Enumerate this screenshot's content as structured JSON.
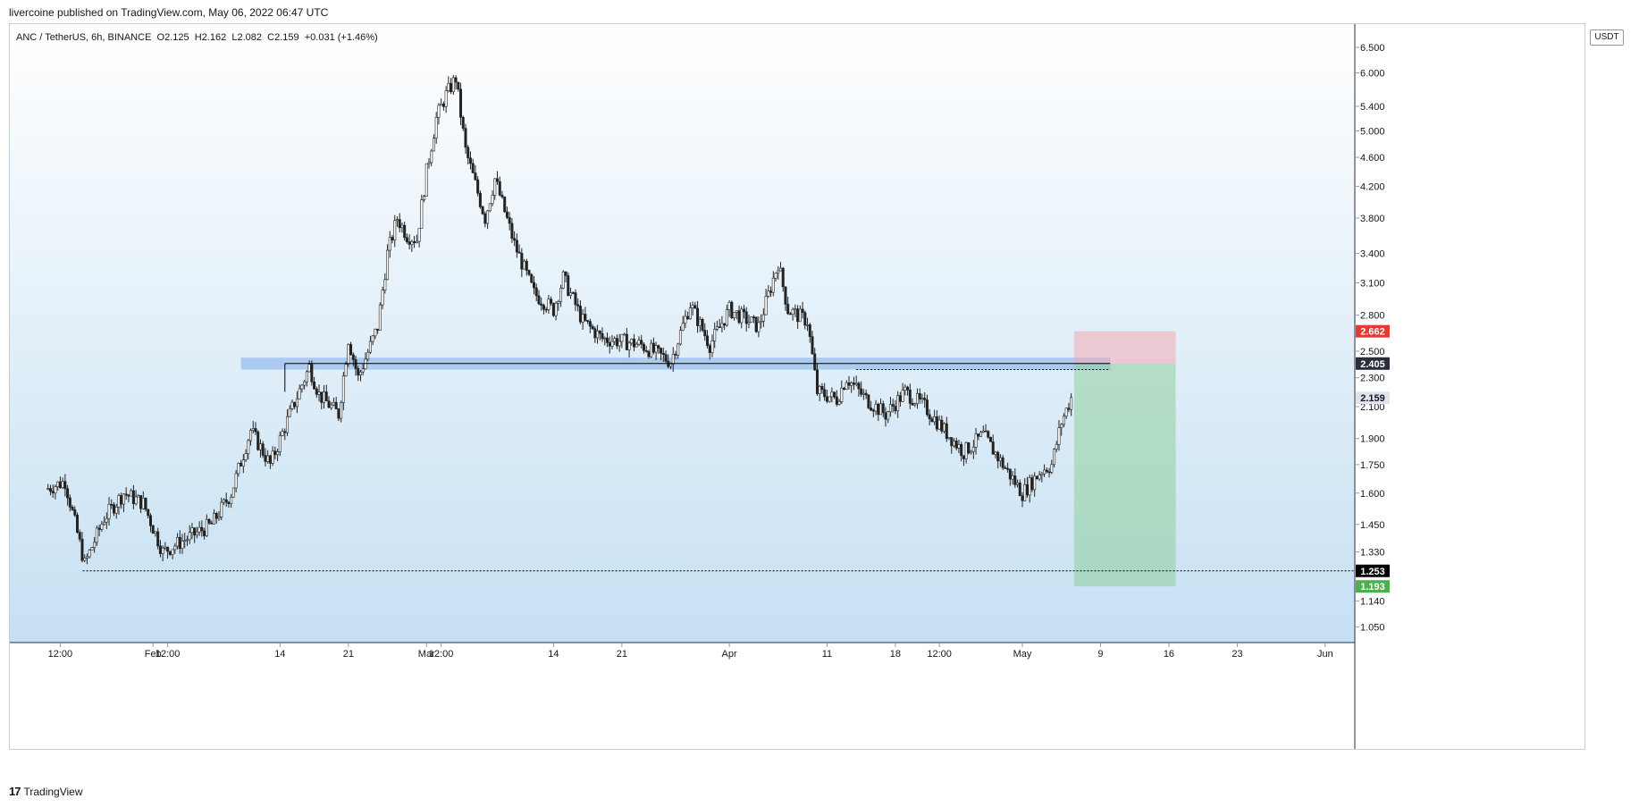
{
  "header": {
    "published_by": "livercoine published on TradingView.com, May 06, 2022 06:47 UTC"
  },
  "legend": {
    "symbol": "ANC / TetherUS, 6h, BINANCE",
    "open": "O2.125",
    "high": "H2.162",
    "low": "L2.082",
    "close": "C2.159",
    "change": "+0.031 (+1.46%)"
  },
  "price_axis": {
    "currency": "USDT",
    "ticks": [
      "6.500",
      "6.000",
      "5.400",
      "5.000",
      "4.600",
      "4.200",
      "3.800",
      "3.400",
      "3.100",
      "2.800",
      "2.500",
      "2.300",
      "2.100",
      "1.900",
      "1.750",
      "1.600",
      "1.450",
      "1.330",
      "1.140",
      "1.050"
    ]
  },
  "time_axis": {
    "labels": [
      "12:00",
      "Feb",
      "12:00",
      "14",
      "21",
      "Mar",
      "12:00",
      "14",
      "21",
      "Apr",
      "11",
      "18",
      "12:00",
      "May",
      "9",
      "16",
      "23",
      "Jun"
    ]
  },
  "price_badges": {
    "stop": "2.662",
    "zone": "2.405",
    "current": "2.159",
    "support": "1.253",
    "target": "1.193"
  },
  "colors": {
    "badge_stop": "#e53935",
    "badge_zone": "#2a2e39",
    "badge_current": "#e0e3eb",
    "badge_support": "#000000",
    "badge_target": "#4caf50",
    "zone_fill": "#6f9fe8",
    "stop_fill": "#f4a9b3",
    "target_fill": "#8fcf9a"
  },
  "footer": {
    "brand": "TradingView"
  },
  "chart_data": {
    "type": "candlestick",
    "title": "ANC / TetherUS, 6h, BINANCE",
    "scale": "log",
    "ylim": [
      1.0,
      7.0
    ],
    "close_series": [
      {
        "x": "Jan 21",
        "y": 1.62
      },
      {
        "x": "Jan 23",
        "y": 1.66
      },
      {
        "x": "Jan 25",
        "y": 1.28
      },
      {
        "x": "Jan 27",
        "y": 1.48
      },
      {
        "x": "Jan 29",
        "y": 1.6
      },
      {
        "x": "Jan 31",
        "y": 1.55
      },
      {
        "x": "Feb 02",
        "y": 1.33
      },
      {
        "x": "Feb 05",
        "y": 1.4
      },
      {
        "x": "Feb 07",
        "y": 1.45
      },
      {
        "x": "Feb 09",
        "y": 1.6
      },
      {
        "x": "Feb 11",
        "y": 1.95
      },
      {
        "x": "Feb 13",
        "y": 1.75
      },
      {
        "x": "Feb 15",
        "y": 2.05
      },
      {
        "x": "Feb 17",
        "y": 2.38
      },
      {
        "x": "Feb 18",
        "y": 2.18
      },
      {
        "x": "Feb 20",
        "y": 2.05
      },
      {
        "x": "Feb 21",
        "y": 2.6
      },
      {
        "x": "Feb 22",
        "y": 2.3
      },
      {
        "x": "Feb 24",
        "y": 2.7
      },
      {
        "x": "Feb 25",
        "y": 3.4
      },
      {
        "x": "Feb 26",
        "y": 3.8
      },
      {
        "x": "Feb 27",
        "y": 3.6
      },
      {
        "x": "Feb 28",
        "y": 3.55
      },
      {
        "x": "Mar 01",
        "y": 4.4
      },
      {
        "x": "Mar 02",
        "y": 5.2
      },
      {
        "x": "Mar 03",
        "y": 5.6
      },
      {
        "x": "Mar 04",
        "y": 5.9
      },
      {
        "x": "Mar 05",
        "y": 4.7
      },
      {
        "x": "Mar 07",
        "y": 3.8
      },
      {
        "x": "Mar 08",
        "y": 4.3
      },
      {
        "x": "Mar 10",
        "y": 3.5
      },
      {
        "x": "Mar 12",
        "y": 3.0
      },
      {
        "x": "Mar 14",
        "y": 2.85
      },
      {
        "x": "Mar 15",
        "y": 3.15
      },
      {
        "x": "Mar 17",
        "y": 2.75
      },
      {
        "x": "Mar 19",
        "y": 2.6
      },
      {
        "x": "Mar 21",
        "y": 2.58
      },
      {
        "x": "Mar 23",
        "y": 2.55
      },
      {
        "x": "Mar 26",
        "y": 2.42
      },
      {
        "x": "Mar 28",
        "y": 2.9
      },
      {
        "x": "Mar 30",
        "y": 2.55
      },
      {
        "x": "Apr 01",
        "y": 2.85
      },
      {
        "x": "Apr 04",
        "y": 2.7
      },
      {
        "x": "Apr 06",
        "y": 3.3
      },
      {
        "x": "Apr 07",
        "y": 2.85
      },
      {
        "x": "Apr 09",
        "y": 2.75
      },
      {
        "x": "Apr 10",
        "y": 2.2
      },
      {
        "x": "Apr 12",
        "y": 2.15
      },
      {
        "x": "Apr 13",
        "y": 2.3
      },
      {
        "x": "Apr 15",
        "y": 2.15
      },
      {
        "x": "Apr 17",
        "y": 2.05
      },
      {
        "x": "Apr 19",
        "y": 2.2
      },
      {
        "x": "Apr 21",
        "y": 2.1
      },
      {
        "x": "Apr 23",
        "y": 1.95
      },
      {
        "x": "Apr 25",
        "y": 1.82
      },
      {
        "x": "Apr 27",
        "y": 1.92
      },
      {
        "x": "Apr 29",
        "y": 1.75
      },
      {
        "x": "May 01",
        "y": 1.6
      },
      {
        "x": "May 03",
        "y": 1.72
      },
      {
        "x": "May 04",
        "y": 1.75
      },
      {
        "x": "May 05",
        "y": 2.0
      },
      {
        "x": "May 06",
        "y": 2.159
      }
    ],
    "annotations": [
      {
        "type": "zone",
        "from": 2.36,
        "to": 2.45,
        "label": "2.405"
      },
      {
        "type": "horizontal_line",
        "y": 1.253,
        "style": "dotted"
      },
      {
        "type": "short_position",
        "entry": 2.405,
        "stop": 2.662,
        "target": 1.193
      }
    ]
  }
}
